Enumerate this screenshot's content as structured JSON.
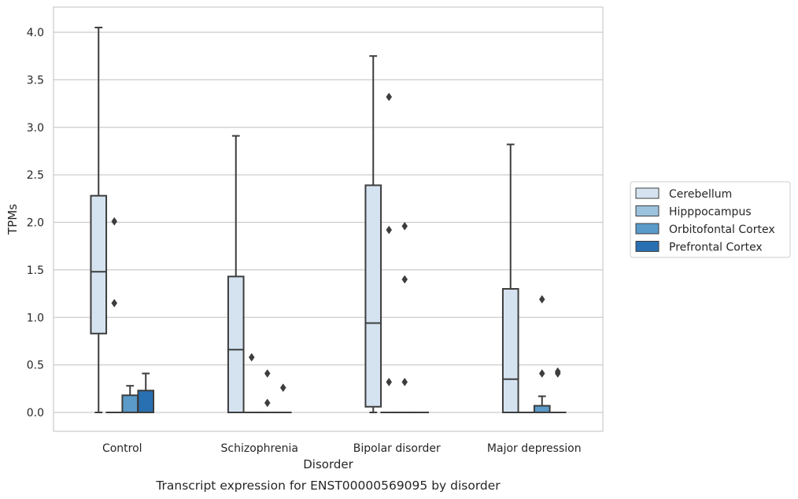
{
  "chart_data": {
    "type": "box",
    "xlabel": "Disorder",
    "ylabel": "TPMs",
    "caption": "Transcript expression for ENST00000569095 by disorder",
    "categories": [
      "Control",
      "Schizophrenia",
      "Bipolar disorder",
      "Major depression"
    ],
    "ylim": [
      -0.2,
      4.25
    ],
    "yticks": [
      "0.0",
      "0.5",
      "1.0",
      "1.5",
      "2.0",
      "2.5",
      "3.0",
      "3.5",
      "4.0"
    ],
    "grid": true,
    "legend_position": "right",
    "series": [
      {
        "name": "Cerebellum",
        "color": "#d5e3f1",
        "boxes": [
          {
            "q1": 0.83,
            "median": 1.48,
            "q3": 2.28,
            "whisker_low": 0.0,
            "whisker_high": 4.05,
            "outliers": []
          },
          {
            "q1": 0.0,
            "median": 0.66,
            "q3": 1.43,
            "whisker_low": 0.0,
            "whisker_high": 2.91,
            "outliers": []
          },
          {
            "q1": 0.06,
            "median": 0.94,
            "q3": 2.39,
            "whisker_low": 0.0,
            "whisker_high": 3.75,
            "outliers": []
          },
          {
            "q1": 0.0,
            "median": 0.35,
            "q3": 1.3,
            "whisker_low": 0.0,
            "whisker_high": 2.82,
            "outliers": []
          }
        ]
      },
      {
        "name": "Hipppocampus",
        "color": "#9cc3de",
        "boxes": [
          {
            "q1": 0.0,
            "median": 0.0,
            "q3": 0.0,
            "whisker_low": 0.0,
            "whisker_high": 0.0,
            "outliers": [
              2.01,
              1.15
            ]
          },
          {
            "q1": 0.0,
            "median": 0.0,
            "q3": 0.0,
            "whisker_low": 0.0,
            "whisker_high": 0.0,
            "outliers": [
              0.58
            ]
          },
          {
            "q1": 0.0,
            "median": 0.0,
            "q3": 0.0,
            "whisker_low": 0.0,
            "whisker_high": 0.0,
            "outliers": [
              3.32,
              1.92,
              0.32
            ]
          },
          {
            "q1": 0.0,
            "median": 0.0,
            "q3": 0.0,
            "whisker_low": 0.0,
            "whisker_high": 0.0,
            "outliers": []
          }
        ]
      },
      {
        "name": "Orbitofontal Cortex",
        "color": "#5a9bc9",
        "boxes": [
          {
            "q1": 0.0,
            "median": 0.0,
            "q3": 0.18,
            "whisker_low": 0.0,
            "whisker_high": 0.28,
            "outliers": []
          },
          {
            "q1": 0.0,
            "median": 0.0,
            "q3": 0.0,
            "whisker_low": 0.0,
            "whisker_high": 0.0,
            "outliers": [
              0.41,
              0.1
            ]
          },
          {
            "q1": 0.0,
            "median": 0.0,
            "q3": 0.0,
            "whisker_low": 0.0,
            "whisker_high": 0.0,
            "outliers": [
              1.96,
              1.4,
              0.32
            ]
          },
          {
            "q1": 0.0,
            "median": 0.0,
            "q3": 0.07,
            "whisker_low": 0.0,
            "whisker_high": 0.17,
            "outliers": [
              1.19,
              0.41
            ]
          }
        ]
      },
      {
        "name": "Prefrontal Cortex",
        "color": "#2870b1",
        "boxes": [
          {
            "q1": 0.0,
            "median": 0.0,
            "q3": 0.23,
            "whisker_low": 0.0,
            "whisker_high": 0.41,
            "outliers": []
          },
          {
            "q1": 0.0,
            "median": 0.0,
            "q3": 0.0,
            "whisker_low": 0.0,
            "whisker_high": 0.0,
            "outliers": [
              0.26
            ]
          },
          {
            "q1": 0.0,
            "median": 0.0,
            "q3": 0.0,
            "whisker_low": 0.0,
            "whisker_high": 0.0,
            "outliers": []
          },
          {
            "q1": 0.0,
            "median": 0.0,
            "q3": 0.0,
            "whisker_low": 0.0,
            "whisker_high": 0.0,
            "outliers": [
              0.43,
              0.41
            ]
          }
        ]
      }
    ]
  }
}
